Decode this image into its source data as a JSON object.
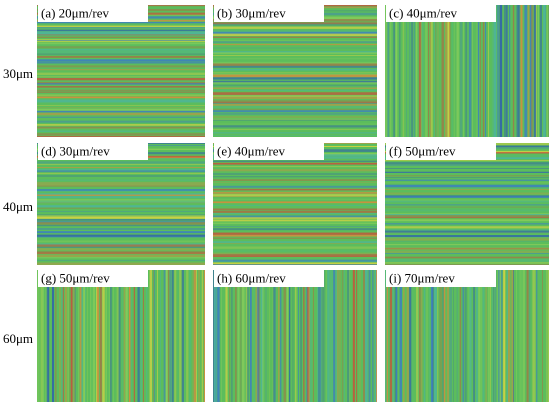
{
  "rows": [
    {
      "label": "30μm",
      "panels": [
        "(a) 20μm/rev",
        "(b) 30μm/rev",
        "(c) 40μm/rev"
      ]
    },
    {
      "label": "40μm",
      "panels": [
        "(d) 30μm/rev",
        "(e) 40μm/rev",
        "(f) 50μm/rev"
      ]
    },
    {
      "label": "60μm",
      "panels": [
        "(g) 50μm/rev",
        "(h) 60μm/rev",
        "(i) 70μm/rev"
      ]
    }
  ]
}
